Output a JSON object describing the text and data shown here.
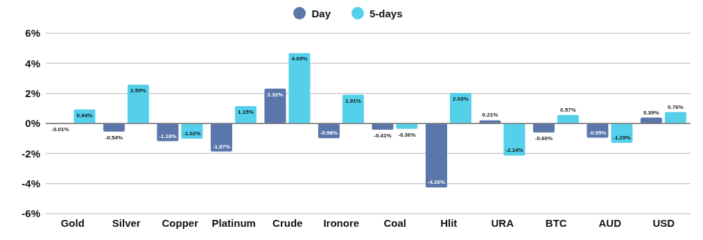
{
  "chart_data": {
    "type": "bar",
    "categories": [
      "Gold",
      "Silver",
      "Copper",
      "Platinum",
      "Crude",
      "Ironore",
      "Coal",
      "Hlit",
      "URA",
      "BTC",
      "AUD",
      "USD"
    ],
    "series": [
      {
        "name": "Day",
        "color": "#5a76aa",
        "values": [
          -0.01,
          -0.54,
          -1.18,
          -1.87,
          2.32,
          -0.98,
          -0.41,
          -4.26,
          0.21,
          -0.6,
          -0.95,
          0.39
        ],
        "value_labels": [
          "-0.01%",
          "-0.54%",
          "-1.18%",
          "-1.87%",
          "2.32%",
          "-0.98%",
          "-0.41%",
          "-4.26%",
          "0.21%",
          "-0.60%",
          "-0.95%",
          "0.39%"
        ]
      },
      {
        "name": "5-days",
        "color": "#54d0ea",
        "values": [
          0.94,
          2.59,
          -1.02,
          1.15,
          4.69,
          1.91,
          -0.36,
          2.03,
          -2.14,
          0.57,
          -1.29,
          0.76
        ],
        "value_labels": [
          "0.94%",
          "2.59%",
          "-1.02%",
          "1.15%",
          "4.69%",
          "1.91%",
          "-0.36%",
          "2.03%",
          "-2.14%",
          "0.57%",
          "-1.29%",
          "0.76%"
        ]
      }
    ],
    "ylim": [
      -6,
      6
    ],
    "yticks": [
      {
        "value": -6,
        "label": "-6%"
      },
      {
        "value": -4,
        "label": "-4%"
      },
      {
        "value": -2,
        "label": "-2%"
      },
      {
        "value": 0,
        "label": "0%"
      },
      {
        "value": 2,
        "label": "2%"
      },
      {
        "value": 4,
        "label": "4%"
      },
      {
        "value": 6,
        "label": "6%"
      }
    ],
    "ref_lines": [
      {
        "axis": "y",
        "value": 0,
        "color": "#777777"
      }
    ],
    "grid": "y",
    "legend": "top"
  }
}
